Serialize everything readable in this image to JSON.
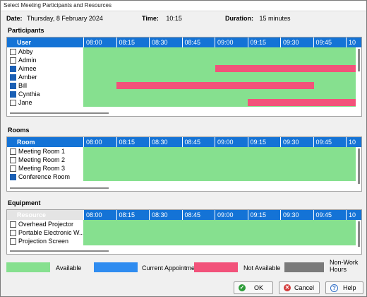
{
  "window": {
    "title": "Select Meeting Participants and Resources"
  },
  "info": {
    "date_label": "Date:",
    "date_value": "Thursday, 8 February 2024",
    "time_label": "Time:",
    "time_value": "10:15",
    "duration_label": "Duration:",
    "duration_value": "15 minutes"
  },
  "times": [
    "08:00",
    "08:15",
    "08:30",
    "08:45",
    "09:00",
    "09:15",
    "09:30",
    "09:45",
    "10"
  ],
  "participants": {
    "label": "Participants",
    "column": "User",
    "rows": [
      {
        "name": "Abby",
        "checked": false
      },
      {
        "name": "Admin",
        "checked": false
      },
      {
        "name": "Aimee",
        "checked": true
      },
      {
        "name": "Amber",
        "checked": true
      },
      {
        "name": "Bill",
        "checked": true
      },
      {
        "name": "Cynthia",
        "checked": true
      },
      {
        "name": "Jane",
        "checked": false
      }
    ]
  },
  "rooms": {
    "label": "Rooms",
    "column": "Room",
    "rows": [
      {
        "name": "Meeting Room 1",
        "checked": false
      },
      {
        "name": "Meeting Room 2",
        "checked": false
      },
      {
        "name": "Meeting Room 3",
        "checked": false
      },
      {
        "name": "Conference Room",
        "checked": true
      }
    ]
  },
  "equipment": {
    "label": "Equipment",
    "column": "Resource",
    "rows": [
      {
        "name": "Overhead Projector",
        "checked": false
      },
      {
        "name": "Portable Electronic W...",
        "checked": false
      },
      {
        "name": "Projection Screen",
        "checked": false
      }
    ]
  },
  "legend": {
    "available": "Available",
    "current": "Current Appointment",
    "not_available": "Not Available",
    "non_work": "Non-Work Hours"
  },
  "colors": {
    "available": "#86e08f",
    "current": "#2f8cf0",
    "not_available": "#f2527a",
    "non_work": "#7a7a7a",
    "header": "#1473d6"
  },
  "buttons": {
    "ok": "OK",
    "cancel": "Cancel",
    "help": "Help"
  }
}
